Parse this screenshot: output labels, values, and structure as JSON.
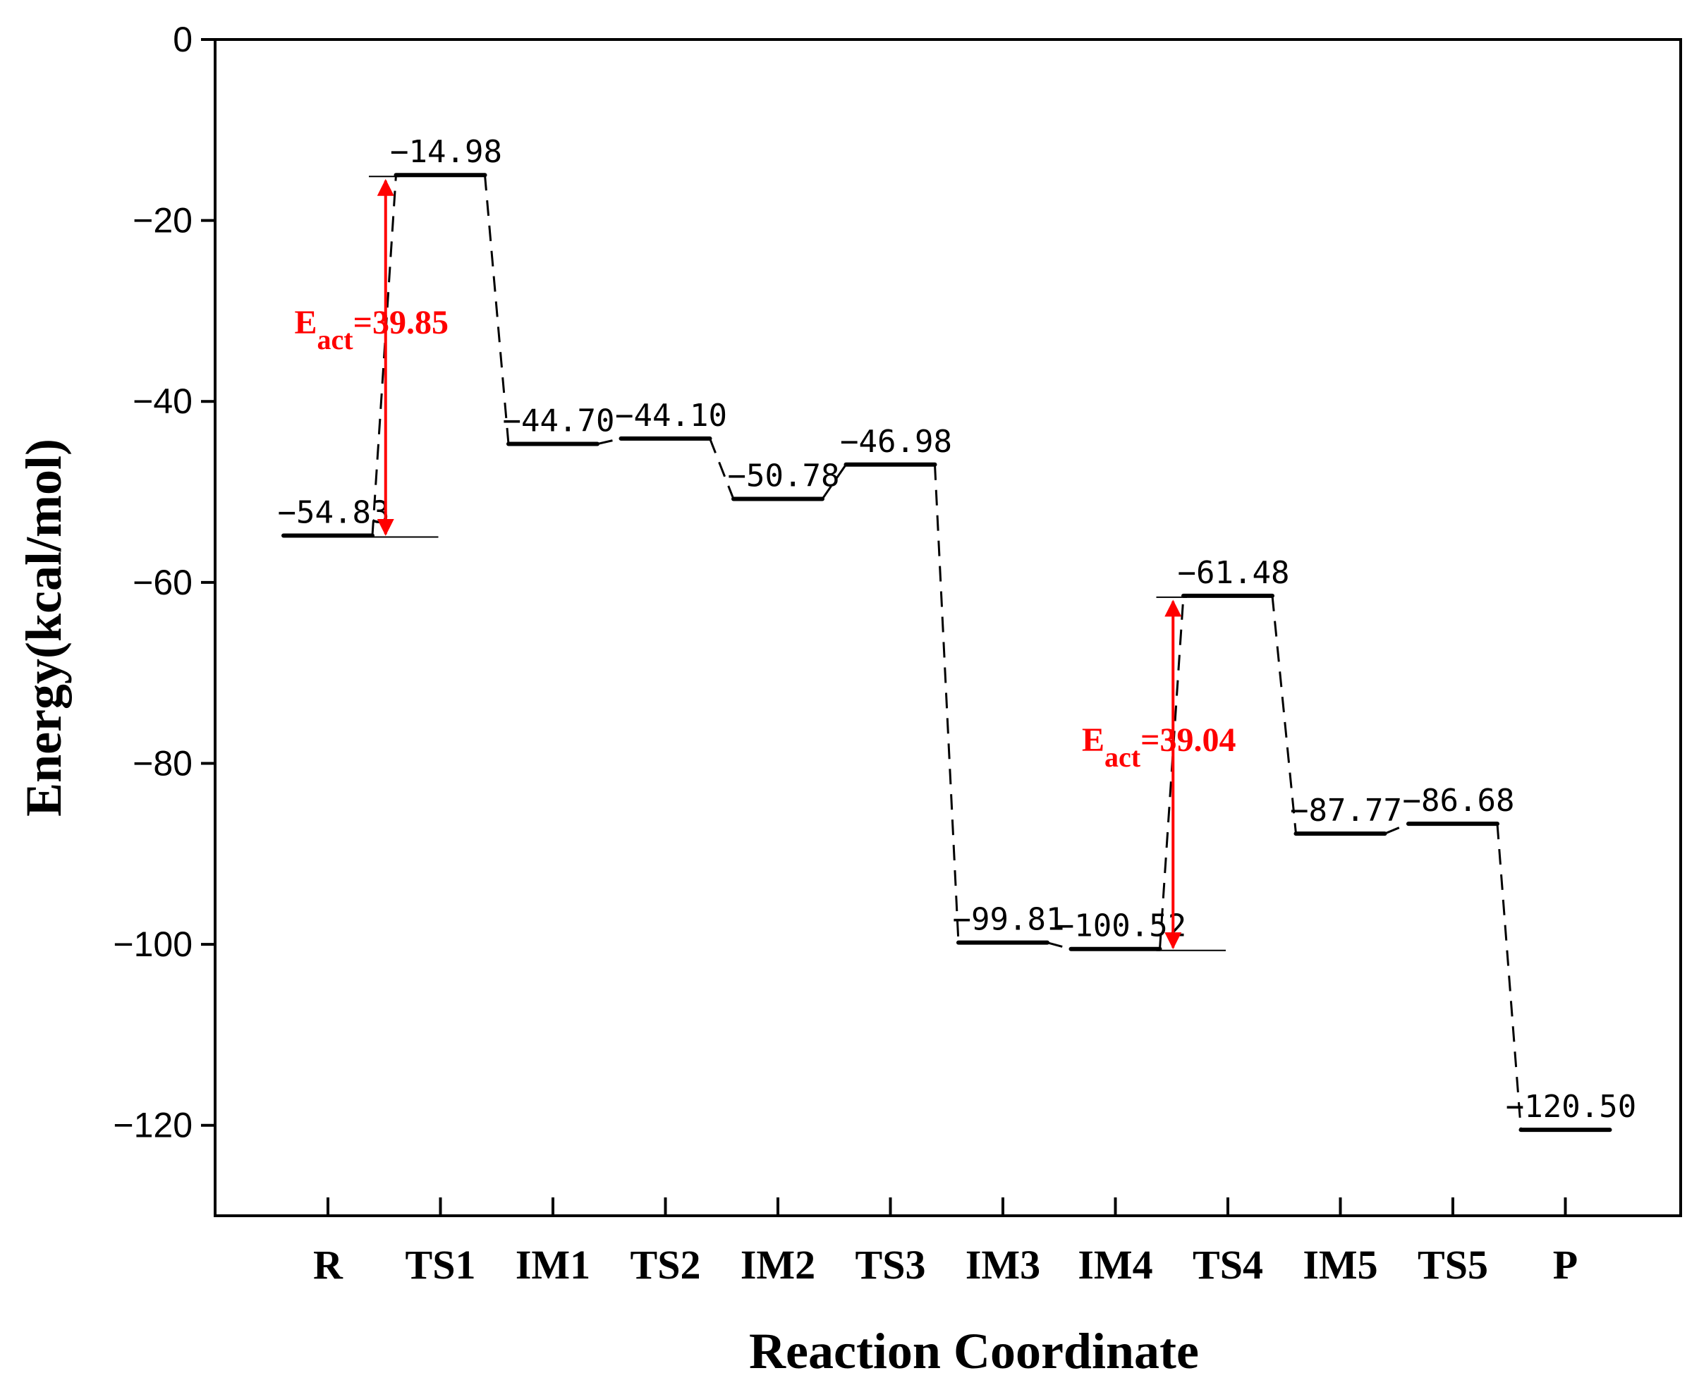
{
  "chart_data": {
    "type": "line",
    "xlabel": "Reaction Coordinate",
    "ylabel": "Energy(kcal/mol)",
    "ylim": [
      -130,
      0
    ],
    "yticks": [
      0,
      -20,
      -40,
      -60,
      -80,
      -100,
      -120
    ],
    "ytick_labels": [
      "0",
      "−20",
      "−40",
      "−60",
      "−80",
      "−100",
      "−120"
    ],
    "categories": [
      "R",
      "TS1",
      "IM1",
      "TS2",
      "IM2",
      "TS3",
      "IM3",
      "IM4",
      "TS4",
      "IM5",
      "TS5",
      "P"
    ],
    "values": [
      -54.83,
      -14.98,
      -44.7,
      -44.1,
      -50.78,
      -46.98,
      -99.81,
      -100.52,
      -61.48,
      -87.77,
      -86.68,
      -120.5
    ],
    "value_labels": [
      "−54.83",
      "−14.98",
      "−44.70",
      "−44.10",
      "−50.78",
      "−46.98",
      "−99.81",
      "−100.52",
      "−61.48",
      "−87.77",
      "−86.68",
      "−120.50"
    ],
    "annotations": [
      {
        "main": "E",
        "sub": "act",
        "rest": "=39.85",
        "from_category": "R",
        "to_category": "TS1",
        "value": 39.85,
        "color": "#ff0000"
      },
      {
        "main": "E",
        "sub": "act",
        "rest": "=39.04",
        "from_category": "IM4",
        "to_category": "TS4",
        "value": 39.04,
        "color": "#ff0000"
      }
    ],
    "grid": false,
    "legend": "none",
    "level_color": "#000000",
    "connector_style": "dashed"
  }
}
